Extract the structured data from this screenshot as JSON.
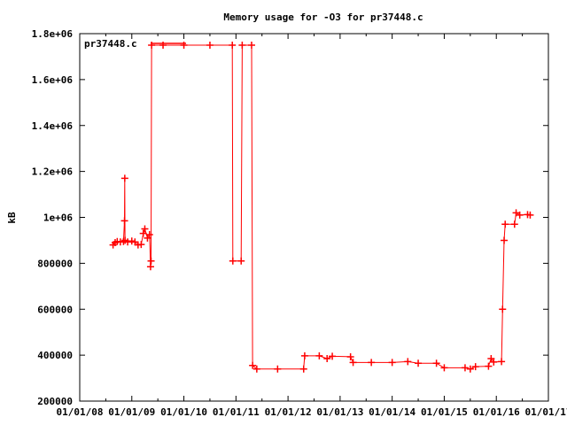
{
  "chart_data": {
    "type": "line",
    "title": "Memory usage for -O3 for pr37448.c",
    "xlabel": "",
    "ylabel": "kB",
    "xlim": [
      2008,
      2017
    ],
    "ylim": [
      200000,
      1800000
    ],
    "grid": false,
    "legend_placement": "top-left",
    "x_ticks": [
      {
        "value": 2008,
        "label": "01/01/08"
      },
      {
        "value": 2009,
        "label": "01/01/09"
      },
      {
        "value": 2010,
        "label": "01/01/10"
      },
      {
        "value": 2011,
        "label": "01/01/11"
      },
      {
        "value": 2012,
        "label": "01/01/12"
      },
      {
        "value": 2013,
        "label": "01/01/13"
      },
      {
        "value": 2014,
        "label": "01/01/14"
      },
      {
        "value": 2015,
        "label": "01/01/15"
      },
      {
        "value": 2016,
        "label": "01/01/16"
      },
      {
        "value": 2017,
        "label": "01/01/17"
      }
    ],
    "y_ticks": [
      {
        "value": 1800000,
        "label": "1.8e+06"
      },
      {
        "value": 1600000,
        "label": "1.6e+06"
      },
      {
        "value": 1400000,
        "label": "1.4e+06"
      },
      {
        "value": 1200000,
        "label": "1.2e+06"
      },
      {
        "value": 1000000,
        "label": "1e+06"
      },
      {
        "value": 800000,
        "label": "800000"
      },
      {
        "value": 600000,
        "label": "600000"
      },
      {
        "value": 400000,
        "label": "400000"
      },
      {
        "value": 200000,
        "label": "200000"
      }
    ],
    "series": [
      {
        "name": "pr37448.c",
        "color": "#ff0000",
        "marker": "plus",
        "points": [
          [
            2008.64,
            880000
          ],
          [
            2008.68,
            890000
          ],
          [
            2008.72,
            895000
          ],
          [
            2008.78,
            893000
          ],
          [
            2008.84,
            895000
          ],
          [
            2008.86,
            985000
          ],
          [
            2008.865,
            1170000
          ],
          [
            2008.87,
            900000
          ],
          [
            2008.92,
            893000
          ],
          [
            2009.0,
            897000
          ],
          [
            2009.06,
            893000
          ],
          [
            2009.12,
            880000
          ],
          [
            2009.18,
            882000
          ],
          [
            2009.22,
            930000
          ],
          [
            2009.25,
            950000
          ],
          [
            2009.3,
            910000
          ],
          [
            2009.34,
            925000
          ],
          [
            2009.36,
            785000
          ],
          [
            2009.37,
            810000
          ],
          [
            2009.38,
            1750000
          ],
          [
            2009.6,
            1750000
          ],
          [
            2010.0,
            1750000
          ],
          [
            2010.5,
            1750000
          ],
          [
            2010.93,
            1750000
          ],
          [
            2010.94,
            810000
          ],
          [
            2011.1,
            810000
          ],
          [
            2011.12,
            1750000
          ],
          [
            2011.3,
            1750000
          ],
          [
            2011.32,
            355000
          ],
          [
            2011.4,
            340000
          ],
          [
            2011.8,
            340000
          ],
          [
            2012.3,
            340000
          ],
          [
            2012.32,
            397000
          ],
          [
            2012.6,
            397000
          ],
          [
            2012.75,
            385000
          ],
          [
            2012.85,
            395000
          ],
          [
            2013.2,
            393000
          ],
          [
            2013.25,
            368000
          ],
          [
            2013.6,
            368000
          ],
          [
            2014.0,
            368000
          ],
          [
            2014.3,
            372000
          ],
          [
            2014.5,
            365000
          ],
          [
            2014.85,
            365000
          ],
          [
            2015.0,
            345000
          ],
          [
            2015.4,
            345000
          ],
          [
            2015.5,
            340000
          ],
          [
            2015.6,
            350000
          ],
          [
            2015.85,
            352000
          ],
          [
            2015.9,
            385000
          ],
          [
            2015.95,
            370000
          ],
          [
            2016.1,
            372000
          ],
          [
            2016.12,
            600000
          ],
          [
            2016.15,
            900000
          ],
          [
            2016.17,
            970000
          ],
          [
            2016.35,
            970000
          ],
          [
            2016.38,
            1020000
          ],
          [
            2016.45,
            1010000
          ],
          [
            2016.6,
            1012000
          ],
          [
            2016.65,
            1010000
          ]
        ]
      }
    ]
  }
}
